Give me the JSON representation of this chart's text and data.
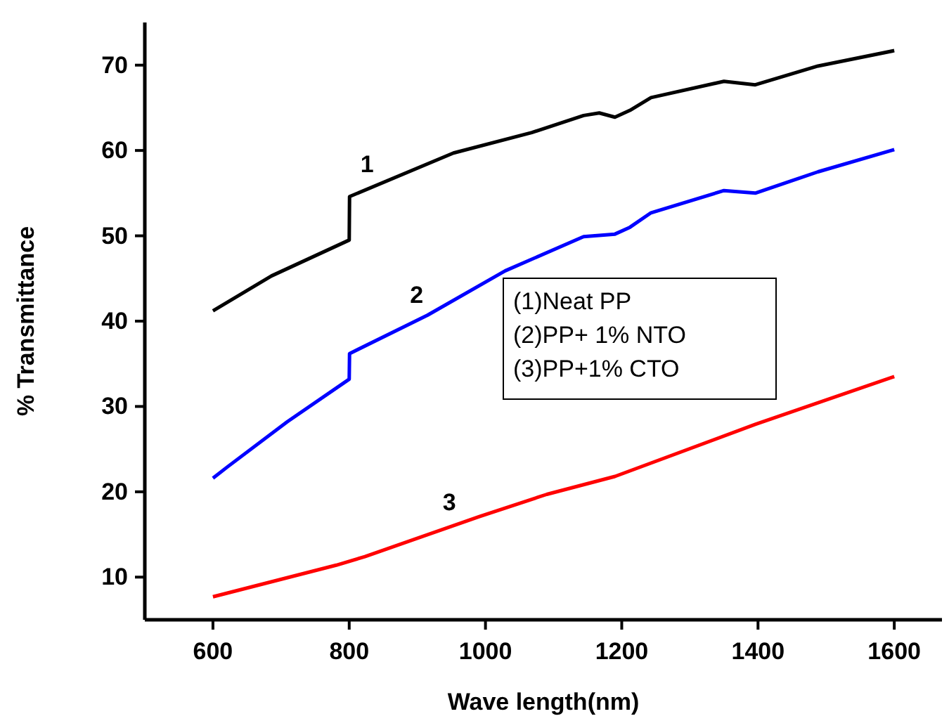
{
  "chart_data": {
    "type": "line",
    "xlabel": "Wave length(nm)",
    "ylabel": "% Transmittance",
    "xlim": [
      500,
      1670
    ],
    "ylim": [
      5,
      75
    ],
    "xticks": [
      600,
      800,
      1000,
      1200,
      1400,
      1600
    ],
    "yticks": [
      10,
      20,
      30,
      40,
      50,
      60,
      70
    ],
    "grid": false,
    "marker": "none",
    "line_style": "solid",
    "series": [
      {
        "name": "1",
        "color": "#000000",
        "x": [
          600,
          686,
          800,
          800.5,
          953,
          1068,
          1144,
          1167,
          1190,
          1212,
          1243,
          1350,
          1396,
          1488,
          1600
        ],
        "values": [
          41.2,
          45.3,
          49.5,
          54.6,
          59.7,
          62.1,
          64.1,
          64.4,
          63.9,
          64.7,
          66.2,
          68.1,
          67.7,
          69.9,
          71.7
        ]
      },
      {
        "name": "2",
        "color": "#0000ff",
        "x": [
          600,
          621,
          709,
          800,
          800.5,
          915,
          1029,
          1144,
          1190,
          1212,
          1243,
          1350,
          1396,
          1488,
          1600
        ],
        "values": [
          21.6,
          22.9,
          28.2,
          33.2,
          36.2,
          40.7,
          45.9,
          49.9,
          50.2,
          51.0,
          52.7,
          55.3,
          55.0,
          57.5,
          60.1
        ]
      },
      {
        "name": "3",
        "color": "#ff0000",
        "x": [
          600,
          781,
          823,
          991,
          1090,
          1190,
          1396,
          1600
        ],
        "values": [
          7.7,
          11.4,
          12.4,
          17.1,
          19.7,
          21.8,
          27.9,
          33.5
        ]
      }
    ],
    "annotations": [
      "(1)Neat PP",
      "(2)PP+ 1% NTO",
      "(3)PP+1% CTO"
    ]
  }
}
